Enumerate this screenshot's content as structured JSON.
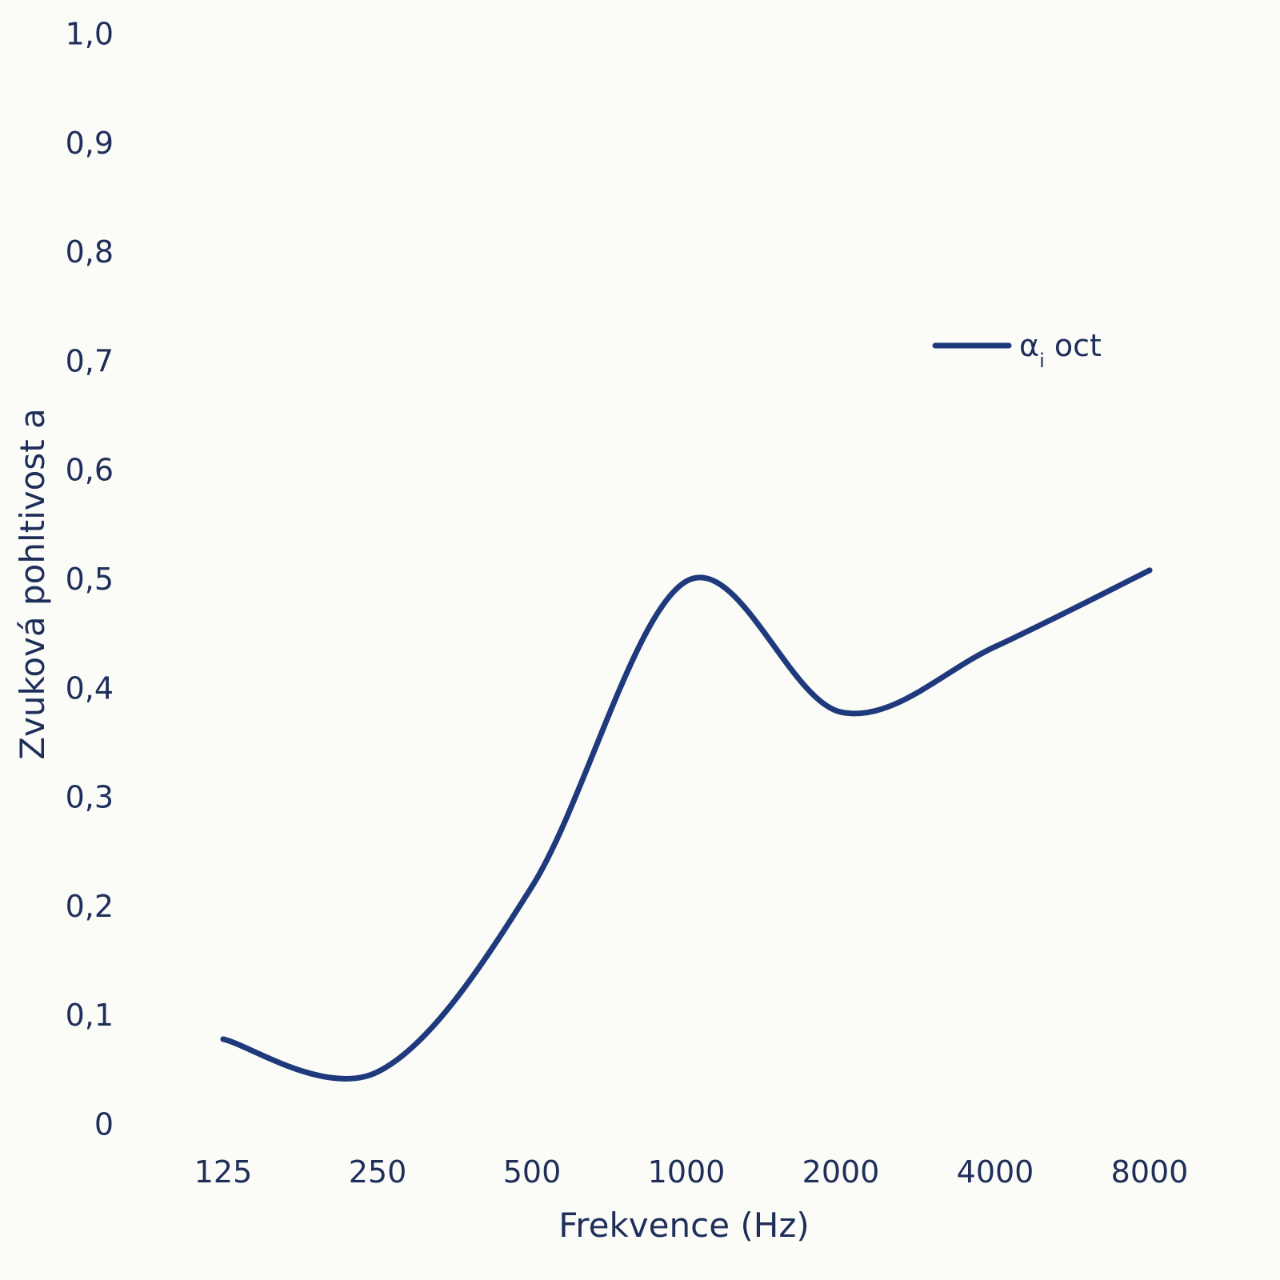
{
  "colors": {
    "background": "#fbfbf8",
    "series": "#1e3a7d",
    "text": "#1f2f5a"
  },
  "chart_data": {
    "type": "line",
    "title": "",
    "xlabel": "Frekvence (Hz)",
    "ylabel": "Zvuková pohltivost a",
    "categories": [
      "125",
      "250",
      "500",
      "1000",
      "2000",
      "4000",
      "8000"
    ],
    "y_ticks": [
      "0",
      "0,1",
      "0,2",
      "0,3",
      "0,4",
      "0,5",
      "0,6",
      "0,7",
      "0,8",
      "0,9",
      "1,0"
    ],
    "ylim": [
      0,
      1.0
    ],
    "grid": false,
    "legend_position": "top-right",
    "line_style": "smooth",
    "series": [
      {
        "name_main": "α",
        "name_sub": "i",
        "name_suffix": " oct",
        "values": [
          0.08,
          0.05,
          0.22,
          0.5,
          0.38,
          0.44,
          0.51
        ]
      }
    ]
  }
}
